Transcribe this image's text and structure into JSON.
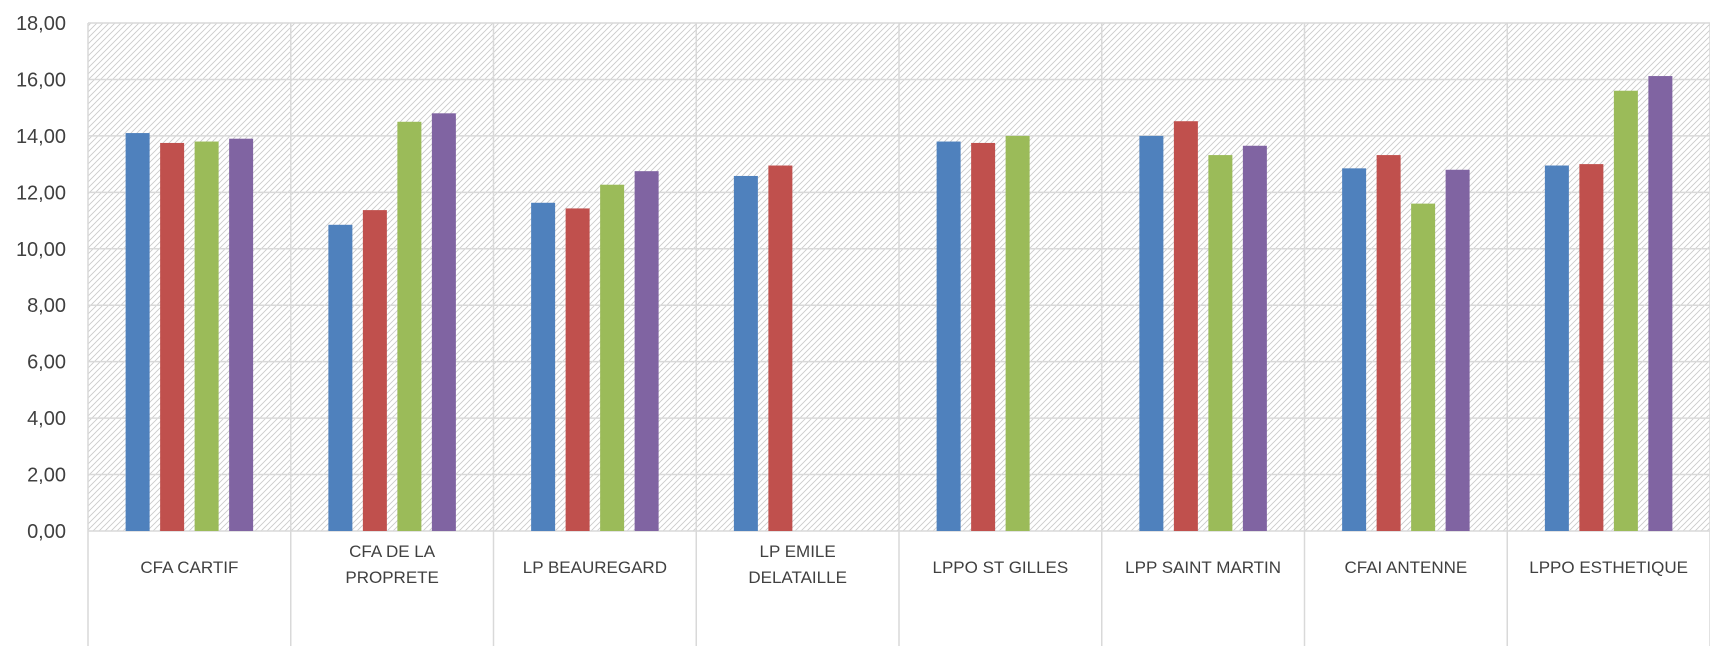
{
  "chart_data": {
    "type": "bar",
    "categories": [
      [
        "CFA CARTIF"
      ],
      [
        "CFA DE LA",
        "PROPRETE"
      ],
      [
        "LP BEAUREGARD"
      ],
      [
        "LP EMILE",
        "DELATAILLE"
      ],
      [
        "LPPO ST GILLES"
      ],
      [
        "LPP SAINT MARTIN"
      ],
      [
        "CFAI ANTENNE"
      ],
      [
        "LPPO ESTHETIQUE"
      ]
    ],
    "series": [
      {
        "color": "#4F81BD",
        "values": [
          14.1,
          10.85,
          11.63,
          12.58,
          13.8,
          14.0,
          12.85,
          12.95
        ]
      },
      {
        "color": "#C0504D",
        "values": [
          13.75,
          11.37,
          11.43,
          12.95,
          13.75,
          14.52,
          13.32,
          13.0
        ]
      },
      {
        "color": "#9BBB59",
        "values": [
          13.8,
          14.5,
          12.27,
          null,
          14.0,
          13.32,
          11.6,
          15.6
        ]
      },
      {
        "color": "#8064A2",
        "values": [
          13.9,
          14.8,
          12.75,
          null,
          null,
          13.65,
          12.8,
          16.12
        ]
      }
    ],
    "yticks": [
      "0,00",
      "2,00",
      "4,00",
      "6,00",
      "8,00",
      "10,00",
      "12,00",
      "14,00",
      "16,00",
      "18,00"
    ],
    "ylim": [
      0,
      18
    ],
    "grid": true
  }
}
